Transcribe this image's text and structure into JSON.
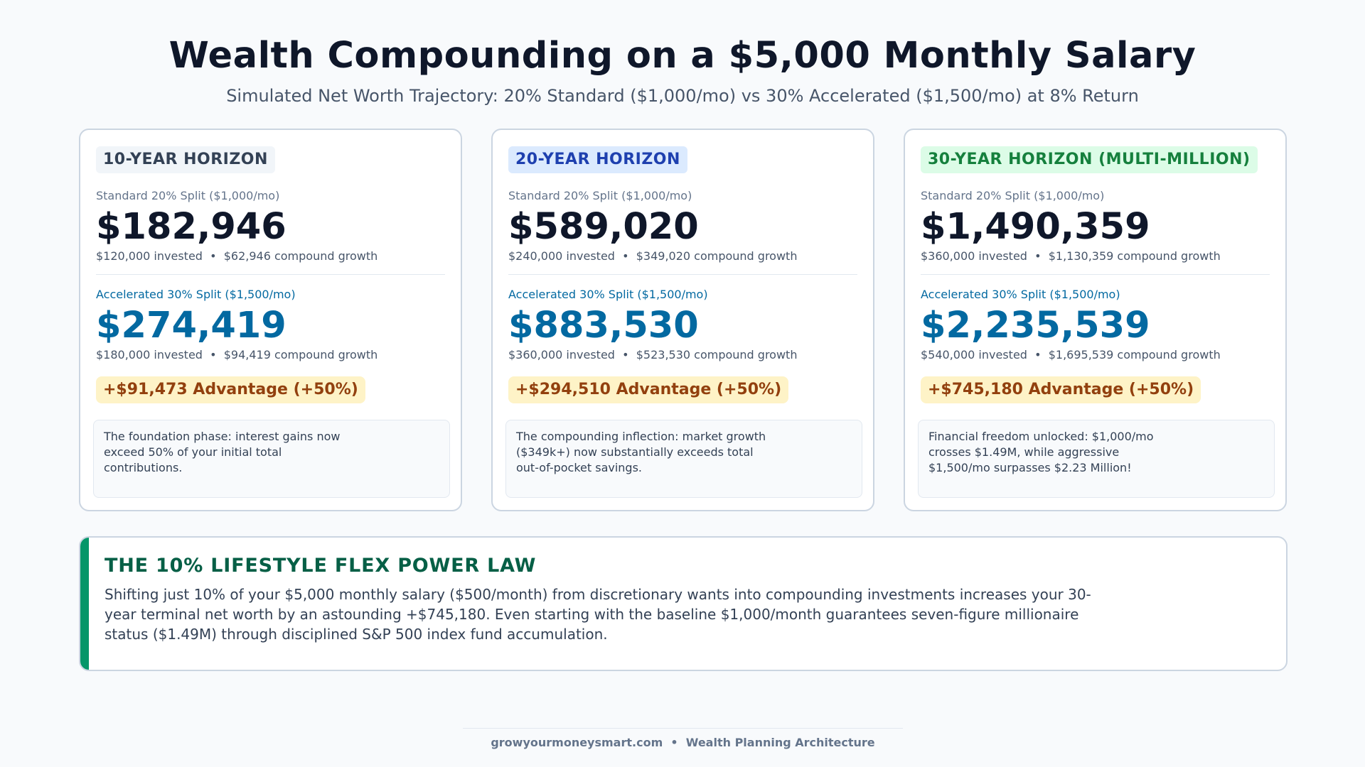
{
  "header": {
    "title": "Wealth Compounding on a $5,000 Monthly Salary",
    "subtitle": "Simulated Net Worth Trajectory: 20% Standard ($1,000/mo) vs 30% Accelerated ($1,500/mo) at 8% Return"
  },
  "cards": [
    {
      "badge": "10-YEAR HORIZON",
      "standard_label": "Standard 20% Split ($1,000/mo)",
      "standard_value": "$182,946",
      "standard_detail": "$120,000 invested  •  $62,946 compound growth",
      "accelerated_label": "Accelerated 30% Split ($1,500/mo)",
      "accelerated_value": "$274,419",
      "accelerated_detail": "$180,000 invested  •  $94,419 compound growth",
      "advantage": "+$91,473 Advantage (+50%)",
      "note": "The foundation phase: interest gains now exceed 50% of your initial total contributions."
    },
    {
      "badge": "20-YEAR HORIZON",
      "standard_label": "Standard 20% Split ($1,000/mo)",
      "standard_value": "$589,020",
      "standard_detail": "$240,000 invested  •  $349,020 compound growth",
      "accelerated_label": "Accelerated 30% Split ($1,500/mo)",
      "accelerated_value": "$883,530",
      "accelerated_detail": "$360,000 invested  •  $523,530 compound growth",
      "advantage": "+$294,510 Advantage (+50%)",
      "note": "The compounding inflection: market growth ($349k+) now substantially exceeds total out-of-pocket savings."
    },
    {
      "badge": "30-YEAR HORIZON (MULTI-MILLION)",
      "standard_label": "Standard 20% Split ($1,000/mo)",
      "standard_value": "$1,490,359",
      "standard_detail": "$360,000 invested  •  $1,130,359 compound growth",
      "accelerated_label": "Accelerated 30% Split ($1,500/mo)",
      "accelerated_value": "$2,235,539",
      "accelerated_detail": "$540,000 invested  •  $1,695,539 compound growth",
      "advantage": "+$745,180 Advantage (+50%)",
      "note": "Financial freedom unlocked: $1,000/mo crosses $1.49M, while aggressive $1,500/mo surpasses $2.23 Million!"
    }
  ],
  "law": {
    "title": "THE 10% LIFESTYLE FLEX POWER LAW",
    "text": "Shifting just 10% of your $5,000 monthly salary ($500/month) from discretionary wants into compounding investments increases your 30-year terminal net worth by an astounding +$745,180. Even starting with the baseline $1,000/month guarantees seven-figure millionaire status ($1.49M) through disciplined S&P 500 index fund accumulation."
  },
  "footer": {
    "text": "growyourmoneysmart.com  •  Wealth Planning Architecture"
  },
  "colors": {
    "accent_blue": "#0369a1",
    "accent_green": "#059669",
    "advantage_bg": "#fef3c7",
    "advantage_text": "#92400e"
  }
}
